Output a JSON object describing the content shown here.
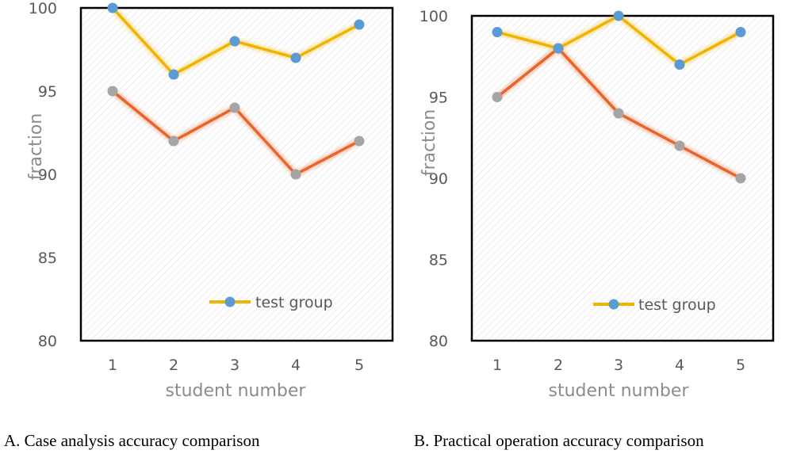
{
  "chart_data": [
    {
      "type": "line",
      "caption": "A. Case analysis accuracy comparison",
      "xlabel": "student number",
      "ylabel": "fraction",
      "categories": [
        "1",
        "2",
        "3",
        "4",
        "5"
      ],
      "ylim": [
        80,
        100
      ],
      "yticks": [
        "80",
        "85",
        "90",
        "95",
        "100"
      ],
      "series": [
        {
          "name": "test group",
          "color": "#f0b400",
          "marker": "#5b9bd5",
          "values": [
            100,
            96,
            98,
            97,
            99
          ]
        },
        {
          "name": "",
          "color": "#e8642a",
          "marker": "#a5a5a5",
          "values": [
            95,
            92,
            94,
            90,
            92
          ]
        }
      ],
      "legend": {
        "label": "test group",
        "placement": "bottom-right"
      }
    },
    {
      "type": "line",
      "caption": "B. Practical operation accuracy comparison",
      "xlabel": "student number",
      "ylabel": "fraction",
      "categories": [
        "1",
        "2",
        "3",
        "4",
        "5"
      ],
      "ylim": [
        80,
        100
      ],
      "yticks": [
        "80",
        "85",
        "90",
        "95",
        "100"
      ],
      "series": [
        {
          "name": "test group",
          "color": "#f0b400",
          "marker": "#5b9bd5",
          "values": [
            99,
            98,
            100,
            97,
            99
          ]
        },
        {
          "name": "",
          "color": "#e8642a",
          "marker": "#a5a5a5",
          "values": [
            95,
            98,
            94,
            92,
            90
          ]
        }
      ],
      "legend": {
        "label": "test group",
        "placement": "bottom-right"
      }
    }
  ]
}
